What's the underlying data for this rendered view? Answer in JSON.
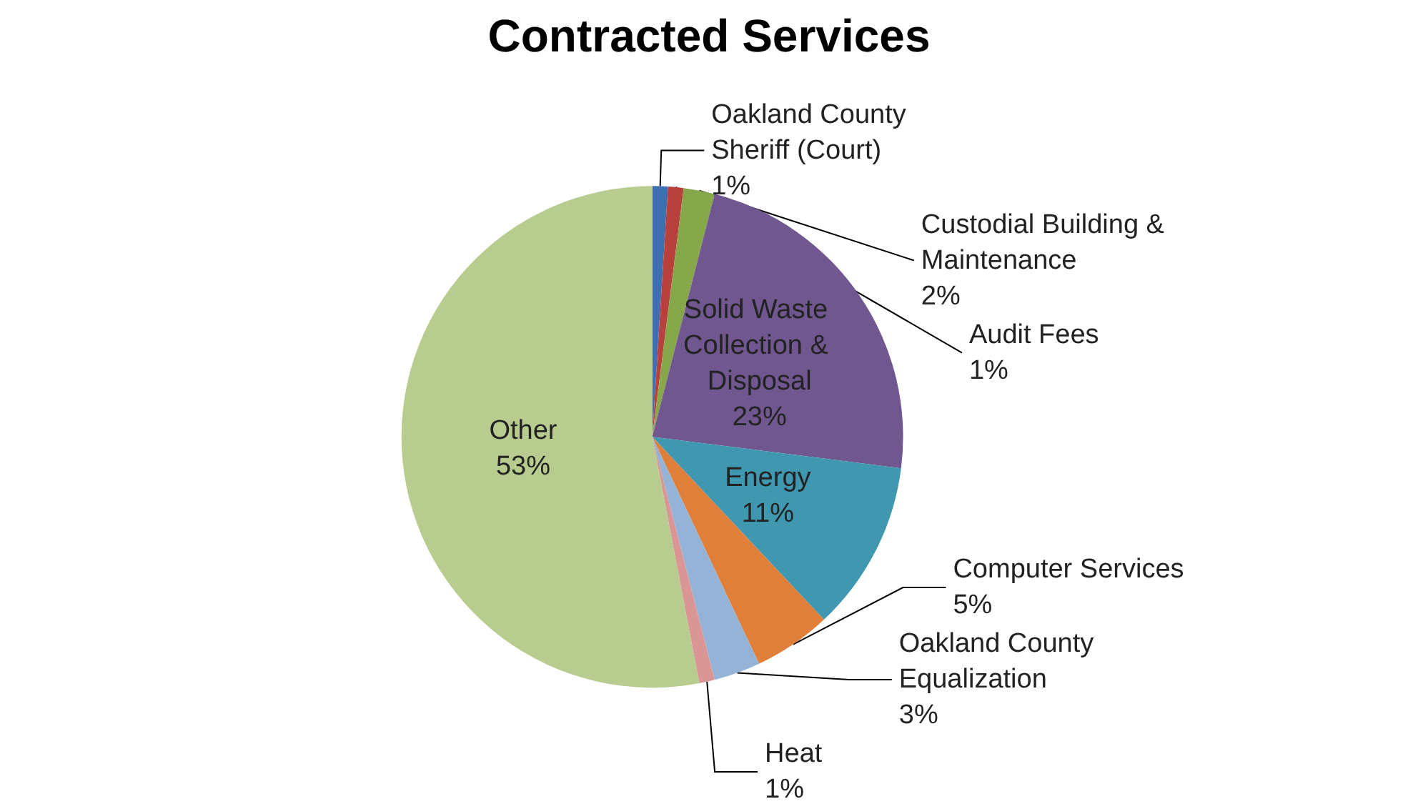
{
  "chart_data": {
    "type": "pie",
    "title": "Contracted Services",
    "categories": [
      "Oakland County Sheriff (Court)",
      "Audit Fees",
      "Custodial Building & Maintenance",
      "Solid Waste Collection & Disposal",
      "Energy",
      "Computer Services",
      "Oakland County Equalization",
      "Heat",
      "Other"
    ],
    "values": [
      1,
      1,
      2,
      23,
      11,
      5,
      3,
      1,
      53
    ],
    "value_labels": [
      "1%",
      "1%",
      "2%",
      "23%",
      "11%",
      "5%",
      "3%",
      "1%",
      "53%"
    ],
    "colors": [
      "#3f6fae",
      "#b8403d",
      "#86a84a",
      "#70578f",
      "#3f98b0",
      "#e07f3a",
      "#95b3d7",
      "#d99694",
      "#b8cc90"
    ],
    "legend": false
  }
}
